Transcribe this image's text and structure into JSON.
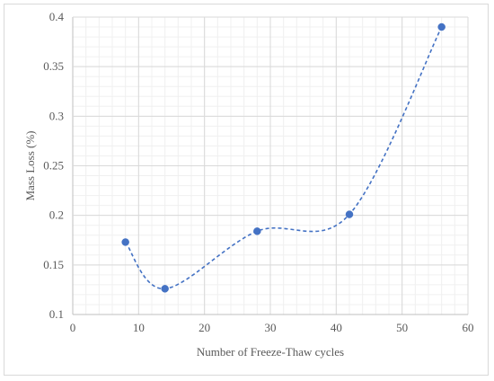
{
  "chart_data": {
    "type": "line",
    "title": "",
    "xlabel": "Number of Freeze-Thaw cycles",
    "ylabel": "Mass Loss (%)",
    "xlim": [
      0,
      60
    ],
    "ylim": [
      0.1,
      0.4
    ],
    "x_ticks": [
      "0",
      "10",
      "20",
      "30",
      "40",
      "50",
      "60"
    ],
    "y_ticks": [
      "0.1",
      "0.15",
      "0.2",
      "0.25",
      "0.3",
      "0.35",
      "0.4"
    ],
    "grid": true,
    "minor_grid": true,
    "smoothed": true,
    "line_style": "dashed",
    "series": [
      {
        "color": "#4472c4",
        "x": [
          8,
          14,
          28,
          42,
          56
        ],
        "y": [
          0.173,
          0.126,
          0.184,
          0.201,
          0.39
        ]
      }
    ]
  }
}
